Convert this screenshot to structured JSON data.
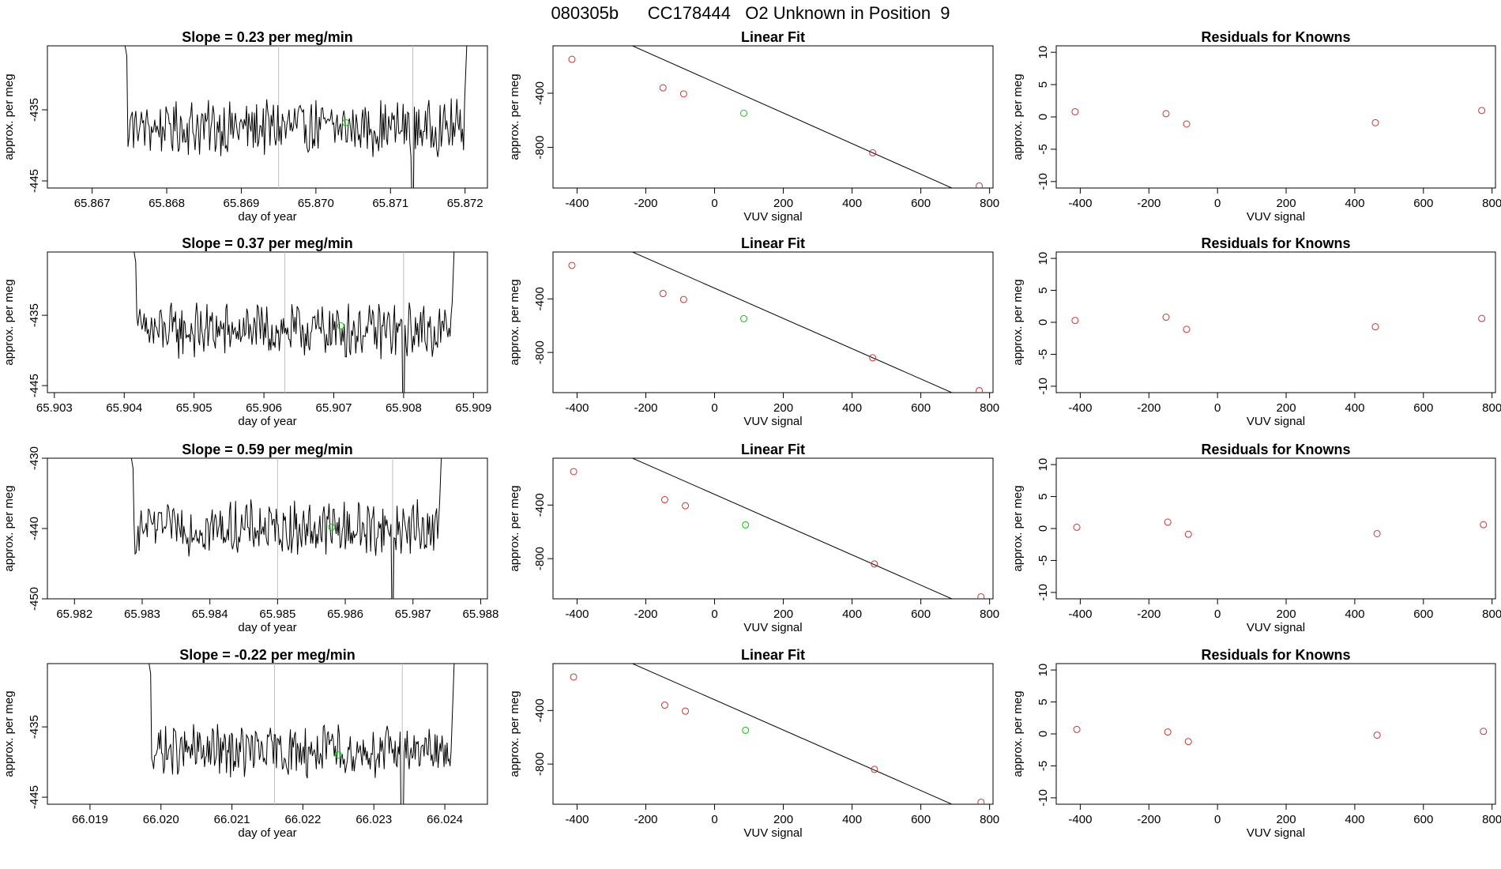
{
  "page_title": "080305b      CC178444   O2 Unknown in Position  9",
  "colors": {
    "trace": "#000000",
    "marker_vline": "#bebebe",
    "unknown_point": "#00cc00",
    "known_point": "#cc3333",
    "fit_line": "#000000",
    "axis": "#000000"
  },
  "chart_data": [
    {
      "type": "line",
      "row": 0,
      "col": 0,
      "title": "Slope =  0.23  per meg/min",
      "xlabel": "day of year",
      "ylabel": "approx. per meg",
      "xlim": [
        65.8664,
        65.8723
      ],
      "ylim": [
        -446,
        -426
      ],
      "xticks": [
        65.867,
        65.868,
        65.869,
        65.87,
        65.871,
        65.872
      ],
      "xtick_labels": [
        "65.867",
        "65.868",
        "65.869",
        "65.870",
        "65.871",
        "65.872"
      ],
      "yticks": [
        -435,
        -445
      ],
      "ytick_labels": [
        "-435",
        "-445"
      ],
      "trace_start": 65.8673,
      "trace_end": 65.8721,
      "baseline": -437.5,
      "vlines": [
        65.8695,
        65.8713
      ],
      "dip_x": 65.8713,
      "unknown_point": [
        65.8704,
        -436.8
      ]
    },
    {
      "type": "line",
      "row": 1,
      "col": 0,
      "title": "Slope =  0.37  per meg/min",
      "xlabel": "day of year",
      "ylabel": "approx. per meg",
      "xlim": [
        65.9029,
        65.9092
      ],
      "ylim": [
        -446,
        -426
      ],
      "xticks": [
        65.903,
        65.904,
        65.905,
        65.906,
        65.907,
        65.908,
        65.909
      ],
      "xtick_labels": [
        "65.903",
        "65.904",
        "65.905",
        "65.906",
        "65.907",
        "65.908",
        "65.909"
      ],
      "yticks": [
        -435,
        -445
      ],
      "ytick_labels": [
        "-435",
        "-445"
      ],
      "trace_start": 65.904,
      "trace_end": 65.9088,
      "baseline": -437.2,
      "vlines": [
        65.9063,
        65.908
      ],
      "dip_x": 65.908,
      "unknown_point": [
        65.9071,
        -436.5
      ]
    },
    {
      "type": "line",
      "row": 2,
      "col": 0,
      "title": "Slope =  0.59  per meg/min",
      "xlabel": "day of year",
      "ylabel": "approx. per meg",
      "xlim": [
        65.9816,
        65.9881
      ],
      "ylim": [
        -450,
        -430
      ],
      "xticks": [
        65.982,
        65.983,
        65.984,
        65.985,
        65.986,
        65.987,
        65.988
      ],
      "xtick_labels": [
        "65.982",
        "65.983",
        "65.984",
        "65.985",
        "65.986",
        "65.987",
        "65.988"
      ],
      "yticks": [
        -430,
        -440,
        -450
      ],
      "ytick_labels": [
        "-430",
        "-440",
        "-450"
      ],
      "trace_start": 65.9827,
      "trace_end": 65.9875,
      "baseline": -440.0,
      "vlines": [
        65.985,
        65.9867
      ],
      "dip_x": 65.9867,
      "unknown_point": [
        65.9858,
        -439.8
      ]
    },
    {
      "type": "line",
      "row": 3,
      "col": 0,
      "title": "Slope =  -0.22  per meg/min",
      "xlabel": "day of year",
      "ylabel": "approx. per meg",
      "xlim": [
        66.0184,
        66.0246
      ],
      "ylim": [
        -446,
        -426
      ],
      "xticks": [
        66.019,
        66.02,
        66.021,
        66.022,
        66.023,
        66.024
      ],
      "xtick_labels": [
        "66.019",
        "66.020",
        "66.021",
        "66.022",
        "66.023",
        "66.024"
      ],
      "yticks": [
        -435,
        -445
      ],
      "ytick_labels": [
        "-435",
        "-445"
      ],
      "trace_start": 66.0197,
      "trace_end": 66.0242,
      "baseline": -438.5,
      "vlines": [
        66.0216,
        66.0234
      ],
      "dip_x": 66.0234,
      "unknown_point": [
        66.0225,
        -439.0
      ]
    },
    {
      "type": "scatter",
      "row": 0,
      "col": 1,
      "title": "Linear Fit",
      "xlabel": "VUV signal",
      "ylabel": "approx. per meg",
      "xlim": [
        -470,
        810
      ],
      "ylim": [
        -1100,
        -50
      ],
      "xticks": [
        -400,
        -200,
        0,
        200,
        400,
        600,
        800
      ],
      "xtick_labels": [
        "-400",
        "-200",
        "0",
        "200",
        "400",
        "600",
        "800"
      ],
      "yticks": [
        -400,
        -800
      ],
      "ytick_labels": [
        "-400",
        "-800"
      ],
      "fit": {
        "slope": -1.13,
        "intercept": -320
      },
      "known_x": [
        -415,
        -150,
        -90,
        460,
        770
      ],
      "known_y": [
        -150,
        -360,
        -405,
        -840,
        -1085
      ],
      "unknown": [
        85,
        -548
      ]
    },
    {
      "type": "scatter",
      "row": 1,
      "col": 1,
      "title": "Linear Fit",
      "xlabel": "VUV signal",
      "ylabel": "approx. per meg",
      "xlim": [
        -470,
        810
      ],
      "ylim": [
        -1100,
        -50
      ],
      "xticks": [
        -400,
        -200,
        0,
        200,
        400,
        600,
        800
      ],
      "xtick_labels": [
        "-400",
        "-200",
        "0",
        "200",
        "400",
        "600",
        "800"
      ],
      "yticks": [
        -400,
        -800
      ],
      "ytick_labels": [
        "-400",
        "-800"
      ],
      "fit": {
        "slope": -1.13,
        "intercept": -320
      },
      "known_x": [
        -415,
        -150,
        -90,
        460,
        770
      ],
      "known_y": [
        -150,
        -360,
        -405,
        -840,
        -1085
      ],
      "unknown": [
        85,
        -548
      ]
    },
    {
      "type": "scatter",
      "row": 2,
      "col": 1,
      "title": "Linear Fit",
      "xlabel": "VUV signal",
      "ylabel": "approx. per meg",
      "xlim": [
        -470,
        810
      ],
      "ylim": [
        -1100,
        -50
      ],
      "xticks": [
        -400,
        -200,
        0,
        200,
        400,
        600,
        800
      ],
      "xtick_labels": [
        "-400",
        "-200",
        "0",
        "200",
        "400",
        "600",
        "800"
      ],
      "yticks": [
        -400,
        -800
      ],
      "ytick_labels": [
        "-400",
        "-800"
      ],
      "fit": {
        "slope": -1.13,
        "intercept": -320
      },
      "known_x": [
        -410,
        -145,
        -85,
        465,
        775
      ],
      "known_y": [
        -150,
        -360,
        -405,
        -840,
        -1085
      ],
      "unknown": [
        90,
        -548
      ]
    },
    {
      "type": "scatter",
      "row": 3,
      "col": 1,
      "title": "Linear Fit",
      "xlabel": "VUV signal",
      "ylabel": "approx. per meg",
      "xlim": [
        -470,
        810
      ],
      "ylim": [
        -1100,
        -50
      ],
      "xticks": [
        -400,
        -200,
        0,
        200,
        400,
        600,
        800
      ],
      "xtick_labels": [
        "-400",
        "-200",
        "0",
        "200",
        "400",
        "600",
        "800"
      ],
      "yticks": [
        -400,
        -800
      ],
      "ytick_labels": [
        "-400",
        "-800"
      ],
      "fit": {
        "slope": -1.13,
        "intercept": -320
      },
      "known_x": [
        -410,
        -145,
        -85,
        465,
        775
      ],
      "known_y": [
        -150,
        -360,
        -405,
        -840,
        -1085
      ],
      "unknown": [
        90,
        -548
      ]
    },
    {
      "type": "scatter",
      "row": 0,
      "col": 2,
      "title": "Residuals for Knowns",
      "xlabel": "VUV signal",
      "ylabel": "approx. per meg",
      "xlim": [
        -470,
        810
      ],
      "ylim": [
        -11,
        11
      ],
      "xticks": [
        -400,
        -200,
        0,
        200,
        400,
        600,
        800
      ],
      "xtick_labels": [
        "-400",
        "-200",
        "0",
        "200",
        "400",
        "600",
        "800"
      ],
      "yticks": [
        -10,
        -5,
        0,
        5,
        10
      ],
      "ytick_labels": [
        "-10",
        "-5",
        "0",
        "5",
        "10"
      ],
      "x": [
        -415,
        -150,
        -90,
        460,
        770
      ],
      "y": [
        0.8,
        0.5,
        -1.1,
        -0.9,
        1.0
      ]
    },
    {
      "type": "scatter",
      "row": 1,
      "col": 2,
      "title": "Residuals for Knowns",
      "xlabel": "VUV signal",
      "ylabel": "approx. per meg",
      "xlim": [
        -470,
        810
      ],
      "ylim": [
        -11,
        11
      ],
      "xticks": [
        -400,
        -200,
        0,
        200,
        400,
        600,
        800
      ],
      "xtick_labels": [
        "-400",
        "-200",
        "0",
        "200",
        "400",
        "600",
        "800"
      ],
      "yticks": [
        -10,
        -5,
        0,
        5,
        10
      ],
      "ytick_labels": [
        "-10",
        "-5",
        "0",
        "5",
        "10"
      ],
      "x": [
        -415,
        -150,
        -90,
        460,
        770
      ],
      "y": [
        0.3,
        0.8,
        -1.1,
        -0.7,
        0.6
      ]
    },
    {
      "type": "scatter",
      "row": 2,
      "col": 2,
      "title": "Residuals for Knowns",
      "xlabel": "VUV signal",
      "ylabel": "approx. per meg",
      "xlim": [
        -470,
        810
      ],
      "ylim": [
        -11,
        11
      ],
      "xticks": [
        -400,
        -200,
        0,
        200,
        400,
        600,
        800
      ],
      "xtick_labels": [
        "-400",
        "-200",
        "0",
        "200",
        "400",
        "600",
        "800"
      ],
      "yticks": [
        -10,
        -5,
        0,
        5,
        10
      ],
      "ytick_labels": [
        "-10",
        "-5",
        "0",
        "5",
        "10"
      ],
      "x": [
        -410,
        -145,
        -85,
        465,
        775
      ],
      "y": [
        0.2,
        1.0,
        -0.9,
        -0.8,
        0.6
      ]
    },
    {
      "type": "scatter",
      "row": 3,
      "col": 2,
      "title": "Residuals for Knowns",
      "xlabel": "VUV signal",
      "ylabel": "approx. per meg",
      "xlim": [
        -470,
        810
      ],
      "ylim": [
        -11,
        11
      ],
      "xticks": [
        -400,
        -200,
        0,
        200,
        400,
        600,
        800
      ],
      "xtick_labels": [
        "-400",
        "-200",
        "0",
        "200",
        "400",
        "600",
        "800"
      ],
      "yticks": [
        -10,
        -5,
        0,
        5,
        10
      ],
      "ytick_labels": [
        "-10",
        "-5",
        "0",
        "5",
        "10"
      ],
      "x": [
        -410,
        -145,
        -85,
        465,
        775
      ],
      "y": [
        0.7,
        0.3,
        -1.2,
        -0.2,
        0.4
      ]
    }
  ]
}
